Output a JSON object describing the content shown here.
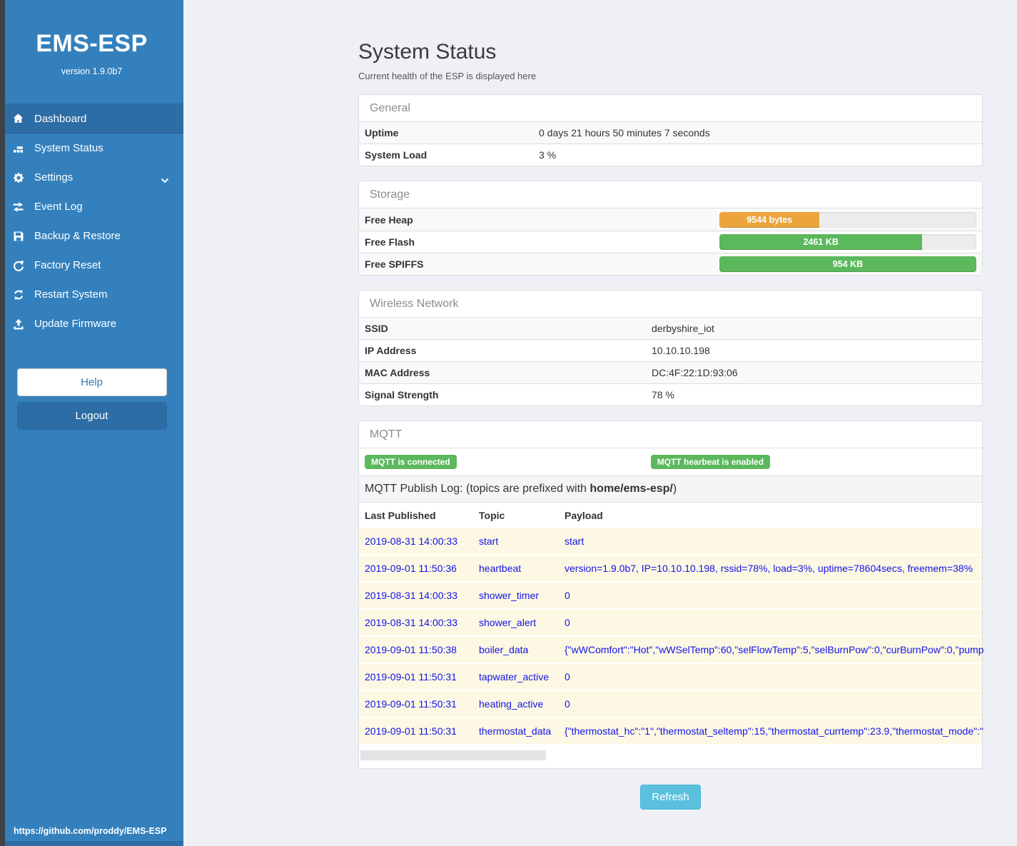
{
  "sidebar": {
    "title": "EMS-ESP",
    "version": "version 1.9.0b7",
    "items": [
      {
        "label": "Dashboard",
        "icon": "home-icon",
        "active": true
      },
      {
        "label": "System Status",
        "icon": "system-status-icon",
        "active": false
      },
      {
        "label": "Settings",
        "icon": "gear-icon",
        "active": false,
        "chevron": true
      },
      {
        "label": "Event Log",
        "icon": "exchange-icon",
        "active": false
      },
      {
        "label": "Backup & Restore",
        "icon": "save-icon",
        "active": false
      },
      {
        "label": "Factory Reset",
        "icon": "rotate-right-icon",
        "active": false
      },
      {
        "label": "Restart System",
        "icon": "refresh-icon",
        "active": false
      },
      {
        "label": "Update Firmware",
        "icon": "upload-icon",
        "active": false
      }
    ],
    "help_label": "Help",
    "logout_label": "Logout",
    "footer_link": "https://github.com/proddy/EMS-ESP"
  },
  "header": {
    "title": "System Status",
    "subtitle": "Current health of the ESP is displayed here"
  },
  "panels": {
    "general": {
      "title": "General",
      "rows": [
        {
          "label": "Uptime",
          "value": "0 days 21 hours 50 minutes 7 seconds"
        },
        {
          "label": "System Load",
          "value": "3 %"
        }
      ]
    },
    "storage": {
      "title": "Storage",
      "rows": [
        {
          "label": "Free Heap",
          "bar_label": "9544 bytes",
          "percent": 39,
          "color": "#eca43c"
        },
        {
          "label": "Free Flash",
          "bar_label": "2461 KB",
          "percent": 79,
          "color": "#5cb85c"
        },
        {
          "label": "Free SPIFFS",
          "bar_label": "954 KB",
          "percent": 100,
          "color": "#5cb85c"
        }
      ]
    },
    "wireless": {
      "title": "Wireless Network",
      "rows": [
        {
          "label": "SSID",
          "value": "derbyshire_iot"
        },
        {
          "label": "IP Address",
          "value": "10.10.10.198"
        },
        {
          "label": "MAC Address",
          "value": "DC:4F:22:1D:93:06"
        },
        {
          "label": "Signal Strength",
          "value": "78 %"
        }
      ]
    },
    "mqtt": {
      "title": "MQTT",
      "badges": [
        "MQTT is connected",
        "MQTT hearbeat is enabled"
      ],
      "log_intro_prefix": "MQTT Publish Log: (topics are prefixed with ",
      "log_intro_bold": "home/ems-esp/",
      "log_intro_suffix": ")",
      "columns": [
        "Last Published",
        "Topic",
        "Payload"
      ],
      "rows": [
        {
          "time": "2019-08-31 14:00:33",
          "topic": "start",
          "payload": "start"
        },
        {
          "time": "2019-09-01 11:50:36",
          "topic": "heartbeat",
          "payload": "version=1.9.0b7, IP=10.10.10.198, rssid=78%, load=3%, uptime=78604secs, freemem=38%"
        },
        {
          "time": "2019-08-31 14:00:33",
          "topic": "shower_timer",
          "payload": "0"
        },
        {
          "time": "2019-08-31 14:00:33",
          "topic": "shower_alert",
          "payload": "0"
        },
        {
          "time": "2019-09-01 11:50:38",
          "topic": "boiler_data",
          "payload": "{\"wWComfort\":\"Hot\",\"wWSelTemp\":60,\"selFlowTemp\":5,\"selBurnPow\":0,\"curBurnPow\":0,\"pump"
        },
        {
          "time": "2019-09-01 11:50:31",
          "topic": "tapwater_active",
          "payload": "0"
        },
        {
          "time": "2019-09-01 11:50:31",
          "topic": "heating_active",
          "payload": "0"
        },
        {
          "time": "2019-09-01 11:50:31",
          "topic": "thermostat_data",
          "payload": "{\"thermostat_hc\":\"1\",\"thermostat_seltemp\":15,\"thermostat_currtemp\":23.9,\"thermostat_mode\":\""
        }
      ]
    }
  },
  "refresh_label": "Refresh",
  "colors": {
    "sidebar": "#3380bd",
    "sidebar_active": "#2d6da5",
    "success": "#5cb85c",
    "warning": "#eca43c",
    "info": "#5bc0de",
    "log_text": "#1414e8",
    "row_highlight": "#fcf8e3"
  }
}
